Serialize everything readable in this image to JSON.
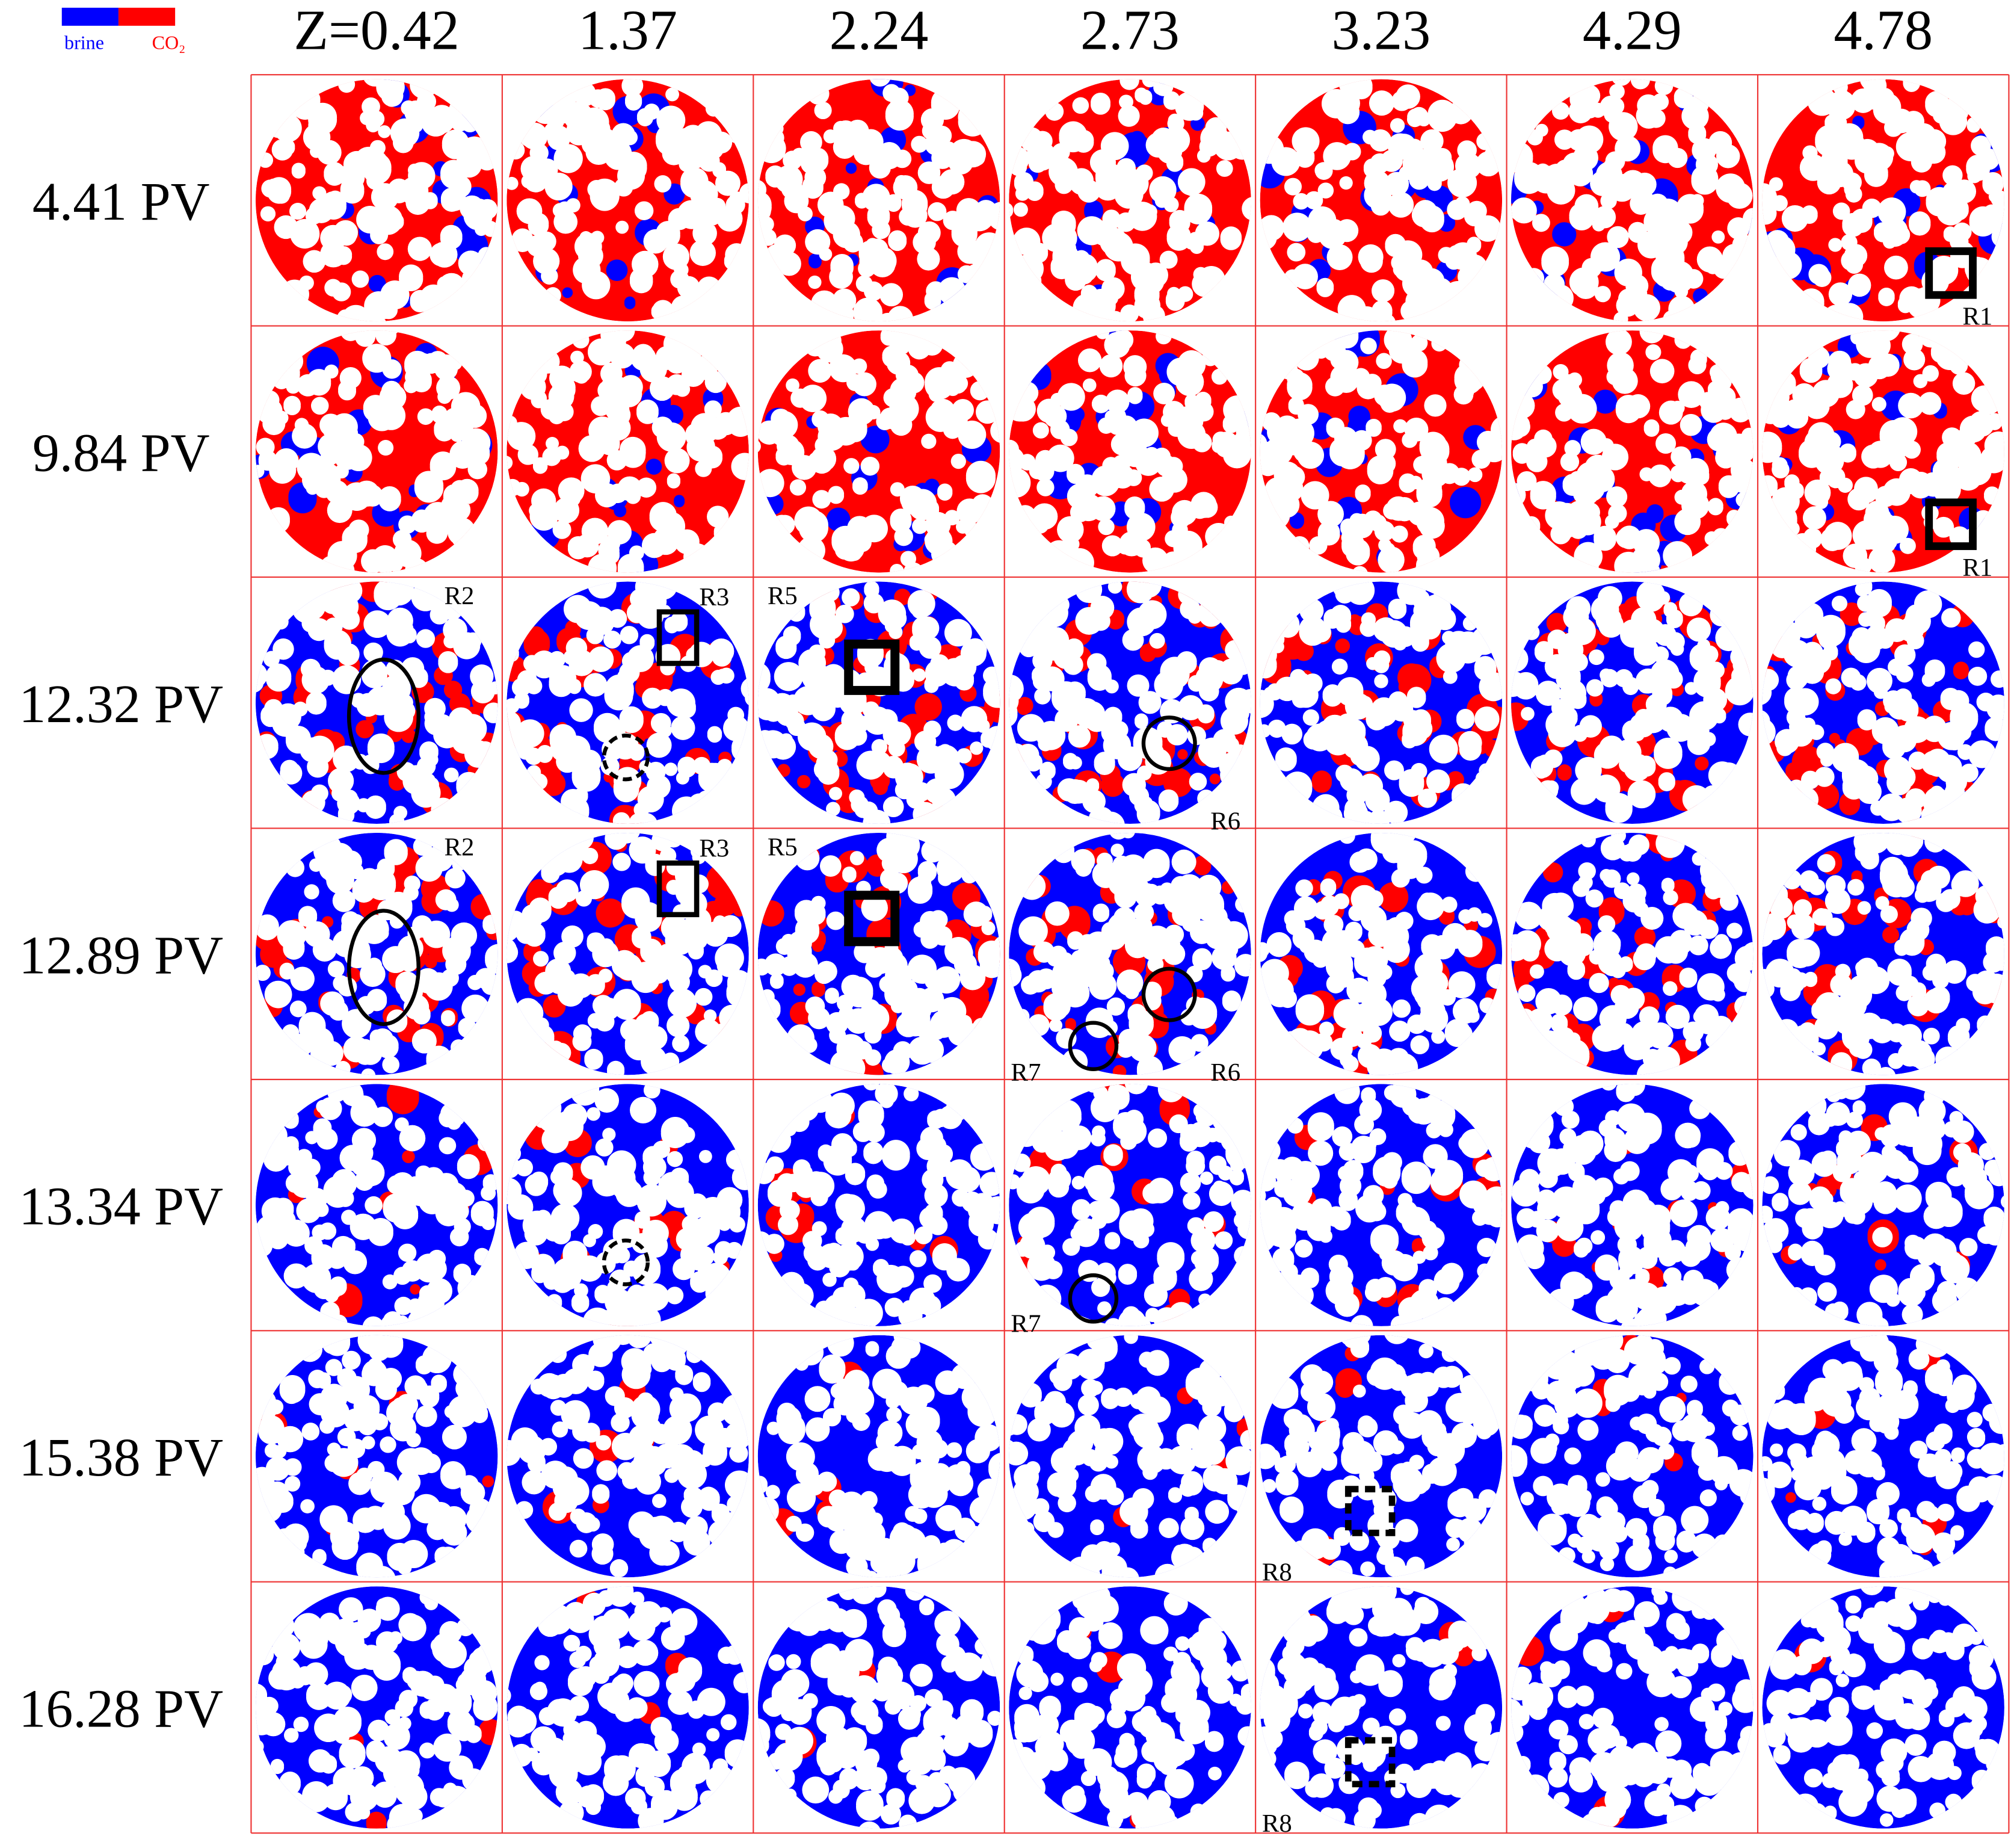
{
  "legend": {
    "brine": "brine",
    "co2": "CO₂"
  },
  "columns": [
    "Z=0.42",
    "1.37",
    "2.24",
    "2.73",
    "3.23",
    "4.29",
    "4.78"
  ],
  "rows": [
    "4.41 PV",
    "9.84 PV",
    "12.32 PV",
    "12.89 PV",
    "13.34 PV",
    "15.38 PV",
    "16.28 PV"
  ],
  "annotations": [
    "R1",
    "R1",
    "R2",
    "R3",
    "R5",
    "R6",
    "R2",
    "R3",
    "R5",
    "R6",
    "R7",
    "R7",
    "R8",
    "R8"
  ]
}
